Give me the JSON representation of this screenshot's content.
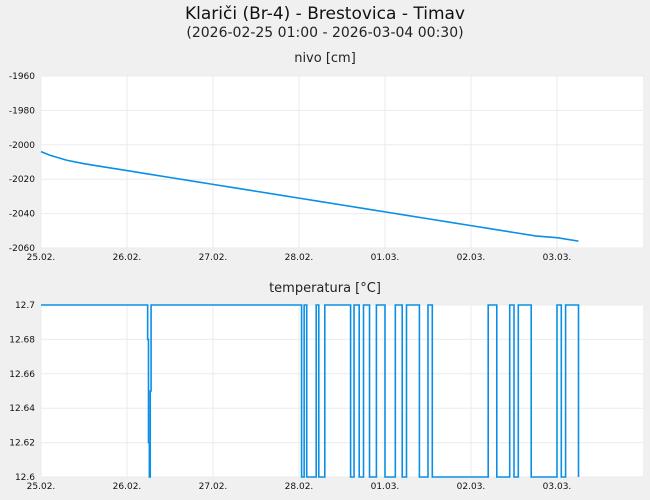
{
  "header": {
    "title": "Klariči (Br-4) - Brestovica - Timav",
    "subtitle": "(2026-02-25 01:00 - 2026-03-04 00:30)"
  },
  "colors": {
    "line": "#0a8fe6",
    "grid": "#ebebeb",
    "plot_bg": "#ffffff",
    "page_bg": "#f0f0f0"
  },
  "chart_data": [
    {
      "type": "line",
      "title": "nivo [cm]",
      "xlabel": "",
      "ylabel": "nivo [cm]",
      "ylim": [
        -2060,
        -1960
      ],
      "yticks": [
        "-1960",
        "-1980",
        "-2000",
        "-2020",
        "-2040",
        "-2060"
      ],
      "xticks": [
        "25.02.",
        "26.02.",
        "27.02.",
        "28.02.",
        "01.03.",
        "02.03.",
        "03.03."
      ],
      "grid": true,
      "x_days": [
        0,
        0.1,
        0.3,
        0.5,
        0.75,
        1.0,
        1.25,
        1.5,
        1.75,
        2.0,
        2.25,
        2.5,
        2.75,
        3.0,
        3.25,
        3.5,
        3.75,
        4.0,
        4.25,
        4.5,
        4.75,
        5.0,
        5.25,
        5.5,
        5.75,
        6.0,
        6.25
      ],
      "values": [
        -2004,
        -2006,
        -2009,
        -2011,
        -2013,
        -2015,
        -2017,
        -2019,
        -2021,
        -2023,
        -2025,
        -2027,
        -2029,
        -2031,
        -2033,
        -2035,
        -2037,
        -2039,
        -2041,
        -2043,
        -2045,
        -2047,
        -2049,
        -2051,
        -2053,
        -2054,
        -2056
      ]
    },
    {
      "type": "line",
      "title": "temperatura [°C]",
      "xlabel": "",
      "ylabel": "temperatura [°C]",
      "ylim": [
        12.6,
        12.7
      ],
      "yticks": [
        "12.7",
        "12.68",
        "12.66",
        "12.64",
        "12.62",
        "12.6"
      ],
      "xticks": [
        "25.02.",
        "26.02.",
        "27.02.",
        "28.02.",
        "01.03.",
        "02.03.",
        "03.03."
      ],
      "grid": true,
      "step": true,
      "segments_note": "12.7 baseline with brief dips around 26.02 ~07h; rapid oscillation between 12.6 and 12.7 from 28.02 to 03.03",
      "x_days": [
        0,
        1.24,
        1.25,
        1.26,
        1.27,
        1.28,
        1.3,
        3.03,
        3.06,
        3.09,
        3.2,
        3.23,
        3.3,
        3.6,
        3.64,
        3.7,
        3.75,
        3.82,
        3.9,
        4.0,
        4.12,
        4.2,
        4.25,
        4.4,
        4.5,
        4.55,
        5.2,
        5.3,
        5.45,
        5.5,
        5.55,
        5.7,
        6.0,
        6.05,
        6.1,
        6.25
      ],
      "values": [
        12.7,
        12.68,
        12.62,
        12.6,
        12.65,
        12.7,
        12.7,
        12.6,
        12.7,
        12.6,
        12.7,
        12.6,
        12.7,
        12.6,
        12.7,
        12.6,
        12.7,
        12.6,
        12.7,
        12.6,
        12.7,
        12.6,
        12.7,
        12.6,
        12.7,
        12.6,
        12.7,
        12.6,
        12.7,
        12.6,
        12.7,
        12.6,
        12.7,
        12.6,
        12.7,
        12.6
      ]
    }
  ]
}
